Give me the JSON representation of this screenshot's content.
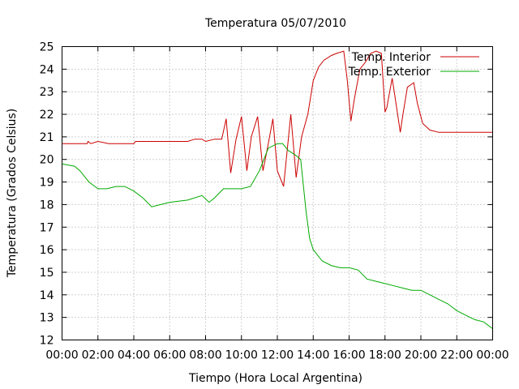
{
  "chart_data": {
    "type": "line",
    "title": "Temperatura 05/07/2010",
    "xlabel": "Tiempo (Hora Local Argentina)",
    "ylabel": "Temperatura (Grados Celsius)",
    "x_unit": "hours",
    "xlim": [
      0,
      24
    ],
    "ylim": [
      12,
      25
    ],
    "x_ticks": [
      0,
      2,
      4,
      6,
      8,
      10,
      12,
      14,
      16,
      18,
      20,
      22,
      24
    ],
    "x_tick_labels": [
      "00:00",
      "02:00",
      "04:00",
      "06:00",
      "08:00",
      "10:00",
      "12:00",
      "14:00",
      "16:00",
      "18:00",
      "20:00",
      "22:00",
      "00:00"
    ],
    "y_ticks": [
      12,
      13,
      14,
      15,
      16,
      17,
      18,
      19,
      20,
      21,
      22,
      23,
      24,
      25
    ],
    "y_tick_labels": [
      "12",
      "13",
      "14",
      "15",
      "16",
      "17",
      "18",
      "19",
      "20",
      "21",
      "22",
      "23",
      "24",
      "25"
    ],
    "grid": true,
    "legend_position": "top-right",
    "series": [
      {
        "name": "Temp. Interior",
        "color": "#cc0000",
        "x": [
          0,
          1.4,
          1.45,
          1.6,
          2.0,
          2.6,
          3.0,
          4.0,
          4.1,
          4.5,
          5.0,
          6.0,
          7.0,
          7.4,
          7.8,
          8.0,
          8.5,
          8.9,
          9.15,
          9.4,
          9.7,
          10.0,
          10.3,
          10.55,
          10.9,
          11.2,
          11.45,
          11.75,
          12.0,
          12.35,
          12.75,
          13.05,
          13.35,
          13.7,
          14.0,
          14.3,
          14.6,
          15.0,
          15.3,
          15.7,
          15.9,
          16.1,
          16.3,
          16.6,
          16.9,
          17.2,
          17.5,
          17.8,
          18.0,
          18.1,
          18.4,
          18.65,
          18.85,
          19.0,
          19.25,
          19.6,
          19.8,
          20.1,
          20.5,
          21.0,
          22.0,
          23.0,
          24.0
        ],
        "values": [
          20.7,
          20.7,
          20.8,
          20.7,
          20.8,
          20.7,
          20.7,
          20.7,
          20.8,
          20.8,
          20.8,
          20.8,
          20.8,
          20.9,
          20.9,
          20.8,
          20.9,
          20.9,
          21.8,
          19.4,
          20.9,
          21.9,
          19.5,
          21.0,
          21.9,
          19.5,
          20.5,
          21.8,
          19.5,
          18.8,
          22.0,
          19.2,
          21.0,
          22.0,
          23.5,
          24.1,
          24.4,
          24.6,
          24.7,
          24.8,
          23.5,
          21.7,
          22.7,
          24.0,
          24.3,
          24.7,
          24.8,
          24.7,
          22.1,
          22.3,
          23.6,
          22.3,
          21.2,
          22.0,
          23.2,
          23.4,
          22.5,
          21.6,
          21.3,
          21.2,
          21.2,
          21.2,
          21.2
        ]
      },
      {
        "name": "Temp. Exterior",
        "color": "#00aa00",
        "x": [
          0,
          0.7,
          1.0,
          1.5,
          2.0,
          2.5,
          3.0,
          3.5,
          4.0,
          4.5,
          5.0,
          5.5,
          6.0,
          7.0,
          7.8,
          8.2,
          8.5,
          9.0,
          9.5,
          10.0,
          10.5,
          11.0,
          11.5,
          12.0,
          12.3,
          12.6,
          13.0,
          13.3,
          13.6,
          13.8,
          14.0,
          14.2,
          14.5,
          15.0,
          15.5,
          16.0,
          16.5,
          17.0,
          17.5,
          18.0,
          18.5,
          19.0,
          19.5,
          20.0,
          20.5,
          21.0,
          21.5,
          22.0,
          22.5,
          23.0,
          23.5,
          24.0
        ],
        "values": [
          19.8,
          19.7,
          19.5,
          19.0,
          18.7,
          18.7,
          18.8,
          18.8,
          18.6,
          18.3,
          17.9,
          18.0,
          18.1,
          18.2,
          18.4,
          18.1,
          18.3,
          18.7,
          18.7,
          18.7,
          18.8,
          19.5,
          20.5,
          20.7,
          20.7,
          20.4,
          20.2,
          20.0,
          17.7,
          16.5,
          16.0,
          15.8,
          15.5,
          15.3,
          15.2,
          15.2,
          15.1,
          14.7,
          14.6,
          14.5,
          14.4,
          14.3,
          14.2,
          14.2,
          14.0,
          13.8,
          13.6,
          13.3,
          13.1,
          12.9,
          12.8,
          12.5
        ]
      }
    ]
  }
}
